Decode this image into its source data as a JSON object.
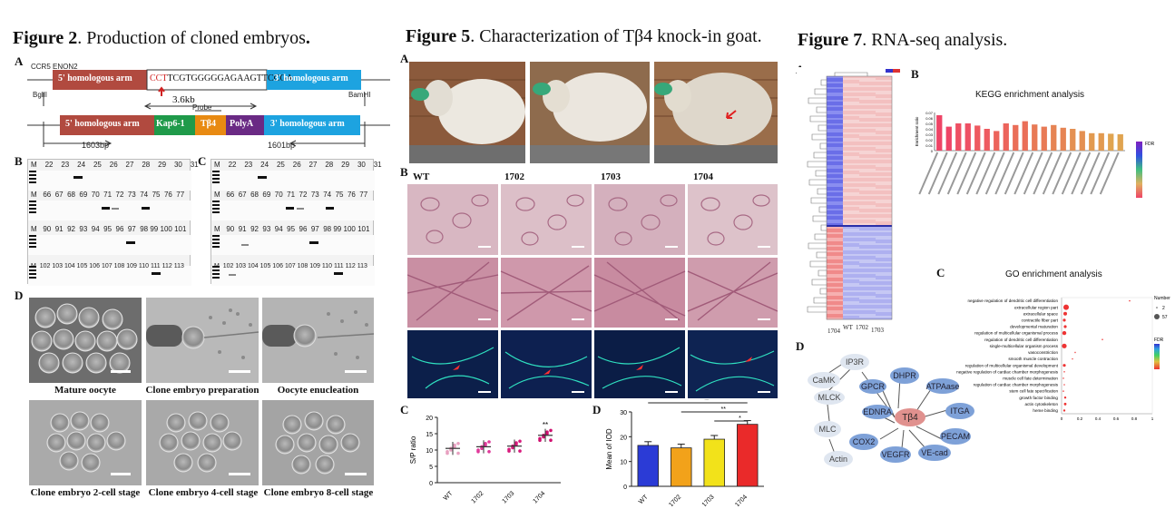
{
  "fig2": {
    "title_bold": "Figure 2",
    "title_rest": ". Production of cloned embryos",
    "title_dot": ".",
    "panel_a": "A",
    "panel_b": "B",
    "panel_c": "C",
    "panel_d": "D",
    "ccr5_label": "CCR5 ENON2",
    "arm5": "5' homologous arm",
    "arm3": "3' homologous arm",
    "seq_red": "CCT",
    "seq_rest": "TCGTGGGGGAGAAGTTCCGA",
    "bglii": "BglII",
    "bamhi": "BamHI",
    "kb": "3.6kb",
    "probe": "Probe",
    "kap": "Kap6-1",
    "tb4": "Tβ4",
    "polya": "PolyA",
    "bp_left": "1603bp",
    "bp_right": "1601bp",
    "lanes_b_row1": [
      "M",
      "22",
      "23",
      "24",
      "25",
      "26",
      "27",
      "28",
      "29",
      "30",
      "31"
    ],
    "lanes_b_row2": [
      "M",
      "66",
      "67",
      "68",
      "69",
      "70",
      "71",
      "72",
      "73",
      "74",
      "75",
      "76",
      "77"
    ],
    "lanes_b_row3": [
      "M",
      "90",
      "91",
      "92",
      "93",
      "94",
      "95",
      "96",
      "97",
      "98",
      "99",
      "100",
      "101"
    ],
    "lanes_b_row4": [
      "M",
      "102",
      "103",
      "104",
      "105",
      "106",
      "107",
      "108",
      "109",
      "110",
      "111",
      "112",
      "113"
    ],
    "captions": [
      "Mature oocyte",
      "Clone embryo preparation",
      "Oocyte enucleation",
      "Clone embryo 2-cell stage",
      "Clone embryo 4-cell stage",
      "Clone embryo 8-cell stage"
    ]
  },
  "fig5": {
    "title_bold": "Figure 5",
    "title_rest": ". Characterization of Tβ4 knock-in goat.",
    "panel_a": "A",
    "panel_b": "B",
    "panel_c": "C",
    "panel_d": "D",
    "columns": [
      "WT",
      "1702",
      "1703",
      "1704"
    ],
    "c_ylabel": "S/P ratio",
    "d_ylabel": "Mean of IOD",
    "sig_c": "**",
    "sig_d": [
      "**",
      "**",
      "*"
    ]
  },
  "fig7": {
    "title_bold": "Figure 7",
    "title_rest": ". RNA-seq analysis.",
    "panel_a": "A",
    "panel_b": "B",
    "panel_c": "C",
    "panel_d": "D",
    "heatmap_cols": [
      "1704",
      "WT",
      "1702",
      "1703"
    ],
    "kegg_title": "KEGG enrichment analysis",
    "kegg_ylabel": "Enrichment ratio",
    "fdr_label": "FDR",
    "go_title": "GO enrichment analysis",
    "go_xlabel": "Rich Factor",
    "number_label": "Number",
    "number_vals": [
      "2",
      "57"
    ],
    "go_terms": [
      "negative regulation of dendritic cell differentiation",
      "extracellular region part",
      "extracellular space",
      "contractile fiber part",
      "developmental maturation",
      "regulation of multicellular organismal process",
      "regulation of dendritic cell differentiation",
      "single-multicellular organism process",
      "vasoconstriction",
      "smooth muscle contraction",
      "regulation of multicellular organismal development",
      "negative regulation of cardiac chamber morphogenesis",
      "muscle cell fate determination",
      "regulation of cardiac chamber morphogenesis",
      "stem cell fate specification",
      "growth factor binding",
      "actin cytoskeleton",
      "heme binding"
    ],
    "network_nodes": [
      "CaMK",
      "IP3R",
      "DHPR",
      "MLCK",
      "GPCR",
      "ATPAase",
      "MLC",
      "EDNRA",
      "Tβ4",
      "ITGA",
      "COX2",
      "PECAM",
      "Actin",
      "VEGFR",
      "VE-cad"
    ]
  },
  "chart_data": [
    {
      "type": "scatter",
      "title": "",
      "categories": [
        "WT",
        "1702",
        "1703",
        "1704"
      ],
      "ylabel": "S/P ratio",
      "ylim": [
        0,
        20
      ],
      "yticks": [
        0,
        5,
        10,
        15,
        20
      ],
      "series": [
        {
          "values": [
            10.5,
            11.0,
            11.2,
            14.5
          ]
        }
      ],
      "annotations": [
        "**"
      ]
    },
    {
      "type": "bar",
      "title": "",
      "categories": [
        "WT",
        "1702",
        "1703",
        "1704"
      ],
      "ylabel": "Mean of IOD",
      "ylim": [
        0,
        30
      ],
      "yticks": [
        0,
        10,
        20,
        30
      ],
      "values": [
        16.5,
        15.5,
        19,
        25
      ],
      "colors": [
        "#2b3bd6",
        "#f2a21a",
        "#f2e21a",
        "#ea2a2a"
      ],
      "annotations": [
        "**",
        "**",
        "*"
      ]
    },
    {
      "type": "bar",
      "title": "KEGG enrichment analysis",
      "ylabel": "Enrichment ratio",
      "ylim": [
        0,
        0.07
      ],
      "yticks": [
        0,
        0.01,
        0.02,
        0.03,
        0.04,
        0.05,
        0.06,
        0.07
      ],
      "values": [
        0.065,
        0.044,
        0.05,
        0.05,
        0.046,
        0.04,
        0.036,
        0.05,
        0.047,
        0.054,
        0.048,
        0.044,
        0.047,
        0.042,
        0.04,
        0.036,
        0.032,
        0.032,
        0.031,
        0.03
      ]
    },
    {
      "type": "scatter",
      "title": "GO enrichment analysis",
      "xlabel": "Rich Factor",
      "xlim": [
        0,
        1
      ],
      "xticks": [
        0,
        0.2,
        0.4,
        0.6,
        0.8,
        1.0
      ],
      "series": [
        {
          "x": [
            0.75,
            0.05,
            0.04,
            0.03,
            0.04,
            0.03,
            0.45,
            0.03,
            0.15,
            0.12,
            0.03,
            0.03,
            0.02,
            0.03,
            0.02,
            0.04,
            0.04,
            0.03
          ]
        }
      ]
    }
  ]
}
